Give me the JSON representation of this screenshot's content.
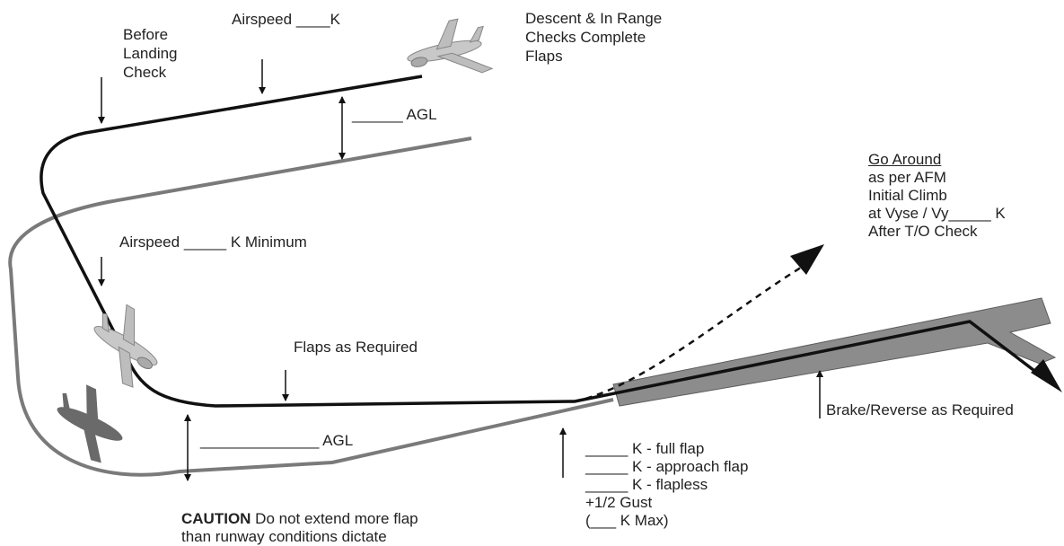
{
  "labels": {
    "before_landing": [
      "Before",
      "Landing",
      "Check"
    ],
    "airspeed_top": "Airspeed ____K",
    "descent_checks": [
      "Descent & In Range",
      "Checks Complete",
      "Flaps"
    ],
    "agl_top": "______ AGL",
    "airspeed_min": "Airspeed _____ K Minimum",
    "flaps_required": "Flaps as Required",
    "agl_bottom": "______________ AGL",
    "caution_bold": "CAUTION",
    "caution_rest": " Do not extend more flap",
    "caution_line2": "than runway conditions dictate",
    "go_around_title": "Go Around",
    "go_around_lines": [
      "as per AFM",
      "Initial Climb",
      "at Vyse / Vy_____ K",
      "After T/O Check"
    ],
    "brake_reverse": "Brake/Reverse as Required",
    "speeds": [
      "_____ K - full flap",
      "_____ K - approach flap",
      "_____ K - flapless",
      "+1/2 Gust",
      "(___ K Max)"
    ]
  },
  "colors": {
    "flight_path": "#111111",
    "ground_track": "#7a7a7a",
    "runway": "#8c8c8c",
    "aircraft": "#bdbdbd",
    "shadow": "#6a6a6a"
  }
}
